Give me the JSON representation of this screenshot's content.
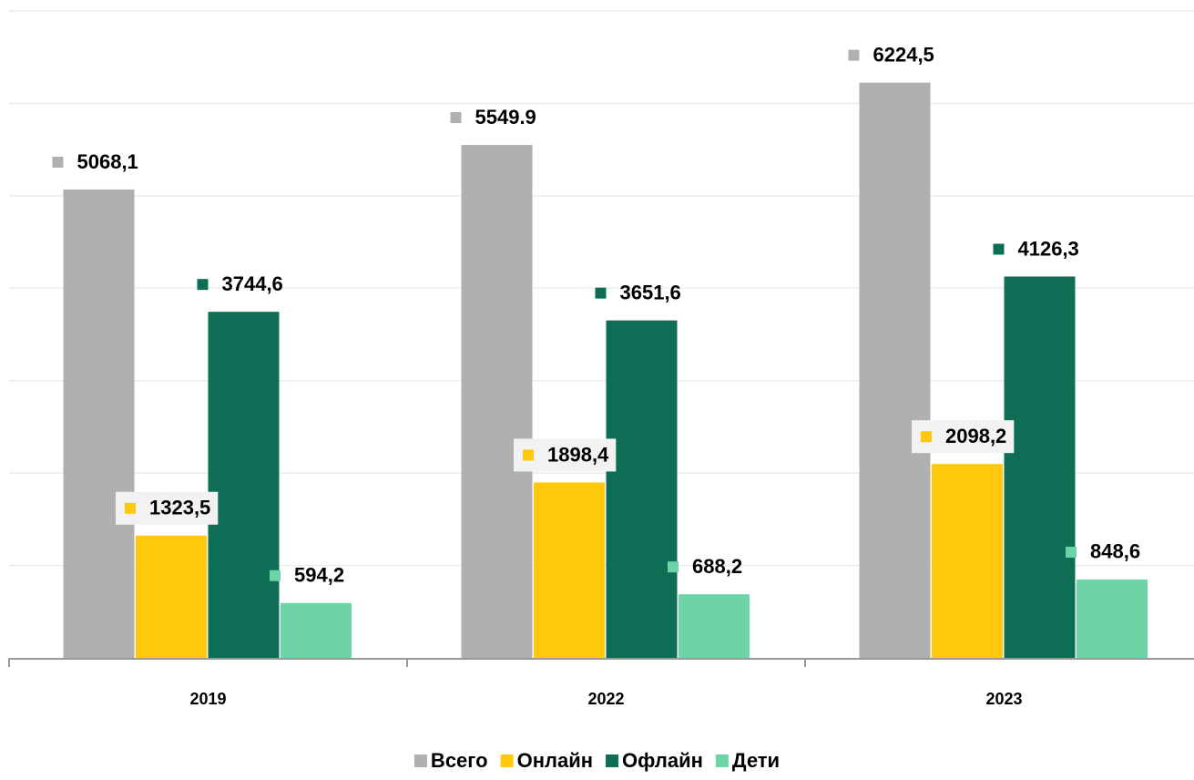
{
  "chart_data": {
    "type": "bar",
    "categories": [
      "2019",
      "2022",
      "2023"
    ],
    "series": [
      {
        "name": "Всего",
        "color": "#b0b0b0",
        "values": [
          5068.1,
          5549.9,
          6224.5
        ],
        "value_labels": [
          "5068,1",
          "5549.9",
          "6224,5"
        ]
      },
      {
        "name": "Онлайн",
        "color": "#ffc80a",
        "values": [
          1323.5,
          1898.4,
          2098.2
        ],
        "value_labels": [
          "1323,5",
          "1898,4",
          "2098,2"
        ]
      },
      {
        "name": "Офлайн",
        "color": "#0e6e55",
        "values": [
          3744.6,
          3651.6,
          4126.3
        ],
        "value_labels": [
          "3744,6",
          "3651,6",
          "4126,3"
        ]
      },
      {
        "name": "Дети",
        "color": "#6dd4a8",
        "values": [
          594.2,
          688.2,
          848.6
        ],
        "value_labels": [
          "594,2",
          "688,2",
          "848,6"
        ]
      }
    ],
    "ylim": [
      0,
      7000
    ],
    "yticks": [
      1000,
      2000,
      3000,
      4000,
      5000,
      6000,
      7000
    ],
    "grid": true
  }
}
